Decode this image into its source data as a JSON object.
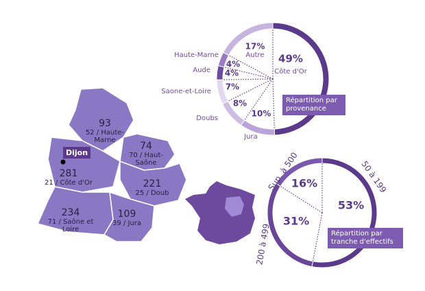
{
  "chart_data": [
    {
      "type": "pie",
      "title": "Répartition par provenance",
      "categories": [
        "Côte d'Or",
        "Jura",
        "Doubs",
        "Saone-et-Loire",
        "Aude",
        "Haute-Marne",
        "Autre"
      ],
      "values": [
        49,
        10,
        8,
        7,
        4,
        4,
        17
      ],
      "value_labels": [
        "49%",
        "10%",
        "8%",
        "7%",
        "4%",
        "4%",
        "17%"
      ],
      "colors": [
        "#5b3a8c",
        "#b9a3d8",
        "#cdbde4",
        "#e2d8f0",
        "#6e4a9e",
        "#9a7cc4",
        "#c6b3e0"
      ]
    },
    {
      "type": "pie",
      "title": "Répartition par tranche d'effectifs",
      "categories": [
        "50 à 199",
        "200 à 499",
        "Sup. à 500"
      ],
      "values": [
        53,
        31,
        16
      ],
      "value_labels": [
        "53%",
        "31%",
        "16%"
      ],
      "colors": [
        "#5b3a8c",
        "#6a4699",
        "#7a58ad"
      ]
    }
  ],
  "map": {
    "city": "Dijon",
    "regions": [
      {
        "count": 93,
        "label": "52 / Haute-Marne"
      },
      {
        "count": 74,
        "label": "70 / Haut-Saône"
      },
      {
        "count": 281,
        "label": "21 / Côte d'Or"
      },
      {
        "count": 221,
        "label": "25 / Doub"
      },
      {
        "count": 234,
        "label": "71 / Saône et Loire"
      },
      {
        "count": 109,
        "label": "39 / Jura"
      }
    ]
  }
}
